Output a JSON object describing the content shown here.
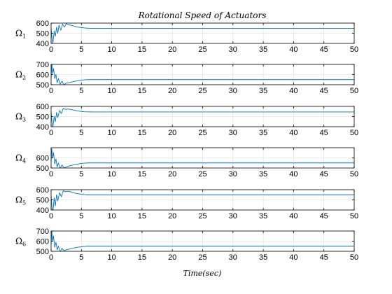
{
  "chart_data": {
    "type": "line",
    "title": "Rotational Speed of Actuators",
    "xlabel": "Time(sec)",
    "xlim": [
      0,
      50
    ],
    "xticks": [
      0,
      5,
      10,
      15,
      20,
      25,
      30,
      35,
      40,
      45,
      50
    ],
    "grid": true,
    "line_color": "#0072BD",
    "panels": [
      {
        "ylabel": "Ω",
        "ysub": "1",
        "ylim": [
          400,
          600
        ],
        "yticks": [
          400,
          500,
          600
        ],
        "series": [
          {
            "x": [
              0,
              0.15,
              0.3,
              0.5,
              0.7,
              0.9,
              1.1,
              1.3,
              1.6,
              1.9,
              2.2,
              2.5,
              2.8,
              3.2,
              3.6,
              4.0,
              4.5,
              5.0,
              5.5,
              6.0,
              7.0,
              10,
              15,
              20,
              30,
              40,
              50
            ],
            "y": [
              550,
              450,
              405,
              520,
              470,
              560,
              500,
              580,
              530,
              590,
              560,
              595,
              585,
              580,
              575,
              566,
              560,
              556,
              552,
              550,
              548,
              548,
              548,
              548,
              548,
              548,
              548
            ]
          }
        ]
      },
      {
        "ylabel": "Ω",
        "ysub": "2",
        "ylim": [
          500,
          700
        ],
        "yticks": [
          500,
          600,
          700
        ],
        "series": [
          {
            "x": [
              0,
              0.1,
              0.25,
              0.4,
              0.6,
              0.8,
              1.0,
              1.2,
              1.5,
              1.8,
              2.1,
              2.5,
              3.0,
              3.5,
              4.0,
              4.5,
              5.0,
              5.5,
              6.0,
              7.0,
              10,
              20,
              30,
              40,
              50
            ],
            "y": [
              560,
              720,
              610,
              660,
              560,
              600,
              520,
              560,
              505,
              535,
              500,
              515,
              520,
              528,
              535,
              540,
              545,
              548,
              550,
              550,
              550,
              550,
              550,
              550,
              550
            ]
          }
        ]
      },
      {
        "ylabel": "Ω",
        "ysub": "3",
        "ylim": [
          400,
          600
        ],
        "yticks": [
          400,
          500,
          600
        ],
        "series": [
          {
            "x": [
              0,
              0.15,
              0.3,
              0.5,
              0.7,
              0.9,
              1.1,
              1.4,
              1.7,
              2.0,
              2.4,
              2.8,
              3.2,
              3.6,
              4.0,
              4.5,
              5.0,
              5.5,
              6.0,
              7.0,
              10,
              20,
              30,
              40,
              50
            ],
            "y": [
              550,
              440,
              400,
              500,
              450,
              540,
              490,
              560,
              530,
              580,
              570,
              575,
              570,
              565,
              560,
              555,
              550,
              547,
              546,
              545,
              545,
              545,
              545,
              545,
              545
            ]
          }
        ]
      },
      {
        "ylabel": "Ω",
        "ysub": "4",
        "ylim": [
          500,
          700
        ],
        "yticks": [
          500,
          600
        ],
        "series": [
          {
            "x": [
              0,
              0.1,
              0.25,
              0.4,
              0.6,
              0.8,
              1.0,
              1.2,
              1.5,
              1.8,
              2.1,
              2.5,
              3.0,
              3.5,
              4.0,
              4.5,
              5.0,
              5.5,
              6.0,
              7.0,
              10,
              20,
              30,
              40,
              50
            ],
            "y": [
              560,
              690,
              600,
              650,
              540,
              590,
              510,
              550,
              495,
              530,
              500,
              510,
              520,
              528,
              535,
              540,
              545,
              548,
              550,
              550,
              550,
              550,
              550,
              550,
              550
            ]
          }
        ]
      },
      {
        "ylabel": "Ω",
        "ysub": "5",
        "ylim": [
          400,
          600
        ],
        "yticks": [
          400,
          500,
          600
        ],
        "series": [
          {
            "x": [
              0,
              0.15,
              0.3,
              0.5,
              0.7,
              0.9,
              1.1,
              1.4,
              1.7,
              2.0,
              2.4,
              2.8,
              3.2,
              3.6,
              4.0,
              4.5,
              5.0,
              5.5,
              6.0,
              7.0,
              10,
              20,
              30,
              40,
              50
            ],
            "y": [
              550,
              420,
              380,
              520,
              440,
              550,
              490,
              570,
              530,
              590,
              580,
              585,
              580,
              570,
              565,
              560,
              555,
              552,
              550,
              550,
              550,
              550,
              550,
              550,
              550
            ]
          }
        ]
      },
      {
        "ylabel": "Ω",
        "ysub": "6",
        "ylim": [
          500,
          700
        ],
        "yticks": [
          500,
          600,
          700
        ],
        "series": [
          {
            "x": [
              0,
              0.1,
              0.25,
              0.4,
              0.6,
              0.8,
              1.0,
              1.2,
              1.5,
              1.8,
              2.1,
              2.5,
              3.0,
              3.5,
              4.0,
              4.5,
              5.0,
              5.5,
              6.0,
              7.0,
              10,
              20,
              30,
              40,
              50
            ],
            "y": [
              560,
              710,
              600,
              650,
              540,
              590,
              515,
              550,
              495,
              530,
              505,
              515,
              522,
              530,
              536,
              541,
              545,
              548,
              550,
              550,
              550,
              550,
              550,
              550,
              550
            ]
          }
        ]
      }
    ]
  }
}
